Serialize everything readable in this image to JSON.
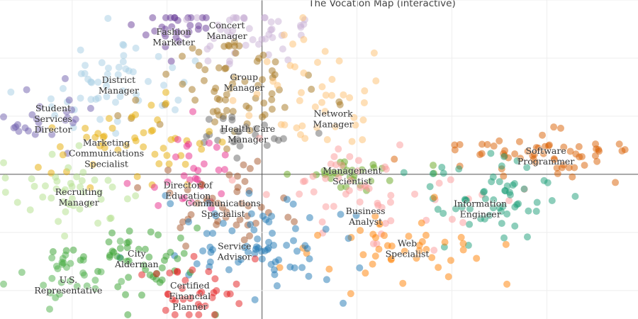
{
  "chart_data": {
    "type": "scatter",
    "title": "The Vocation Map (interactive)",
    "xlabel": "",
    "ylabel": "",
    "xlim": [
      -2.76,
      3.96
    ],
    "ylim": [
      -2.49,
      3.0
    ],
    "grid": true,
    "legend": "none",
    "clusters": [
      {
        "label": [
          "Fashion",
          "Marketer"
        ],
        "label_at": [
          -0.93,
          2.36
        ],
        "center": [
          -0.93,
          2.4
        ],
        "spread": [
          0.3,
          0.28
        ],
        "n": 30,
        "color": "#6a3d9a"
      },
      {
        "label": [
          "Concert",
          "Manager"
        ],
        "label_at": [
          -0.37,
          2.47
        ],
        "center": [
          -0.2,
          2.4
        ],
        "spread": [
          0.3,
          0.3
        ],
        "n": 45,
        "color": "#cab2d6"
      },
      {
        "label": [
          "District",
          "Manager"
        ],
        "label_at": [
          -1.51,
          1.53
        ],
        "center": [
          -1.6,
          1.6
        ],
        "spread": [
          0.45,
          0.45
        ],
        "n": 55,
        "color": "#a6cee3"
      },
      {
        "label": [
          "Student",
          "Services",
          "Director"
        ],
        "label_at": [
          -2.2,
          0.95
        ],
        "center": [
          -2.3,
          1.0
        ],
        "spread": [
          0.25,
          0.3
        ],
        "n": 25,
        "color": "#6f5fad"
      },
      {
        "label": [
          "Group",
          "Manager"
        ],
        "label_at": [
          -0.19,
          1.58
        ],
        "center": [
          -0.35,
          1.45
        ],
        "spread": [
          0.45,
          0.4
        ],
        "n": 70,
        "color": "#a6761d"
      },
      {
        "label": [
          "Network",
          "Manager"
        ],
        "label_at": [
          0.75,
          0.95
        ],
        "center": [
          0.5,
          1.4
        ],
        "spread": [
          0.35,
          0.55
        ],
        "n": 45,
        "color": "#fdbf6f"
      },
      {
        "label": [
          "Health Care",
          "Manager"
        ],
        "label_at": [
          -0.15,
          0.69
        ],
        "center": [
          -0.2,
          0.75
        ],
        "spread": [
          0.3,
          0.2
        ],
        "n": 25,
        "color": "#666666"
      },
      {
        "label": [
          "Marketing",
          "Communications",
          "Specialist"
        ],
        "label_at": [
          -1.64,
          0.36
        ],
        "center": [
          -1.4,
          0.5
        ],
        "spread": [
          0.45,
          0.3
        ],
        "n": 50,
        "color": "#e6ab02"
      },
      {
        "label": [
          "Director of",
          "Education"
        ],
        "label_at": [
          -0.78,
          -0.28
        ],
        "center": [
          -0.7,
          0.05
        ],
        "spread": [
          0.25,
          0.35
        ],
        "n": 30,
        "color": "#e7298a"
      },
      {
        "label": [
          "Communications",
          "Specialist"
        ],
        "label_at": [
          -0.41,
          -0.59
        ],
        "center": [
          -0.45,
          -0.5
        ],
        "spread": [
          0.35,
          0.4
        ],
        "n": 45,
        "color": "#a6562a"
      },
      {
        "label": [
          "Recruiting",
          "Manager"
        ],
        "label_at": [
          -1.93,
          -0.4
        ],
        "center": [
          -2.0,
          -0.4
        ],
        "spread": [
          0.35,
          0.35
        ],
        "n": 45,
        "color": "#b2df8a"
      },
      {
        "label": [
          "Management",
          "Scientist"
        ],
        "label_at": [
          0.95,
          -0.03
        ],
        "center": [
          1.0,
          0.0
        ],
        "spread": [
          0.35,
          0.15
        ],
        "n": 30,
        "color": "#66a61e"
      },
      {
        "label": [
          "Business",
          "Analyst"
        ],
        "label_at": [
          1.09,
          -0.73
        ],
        "center": [
          1.2,
          -0.4
        ],
        "spread": [
          0.55,
          0.5
        ],
        "n": 55,
        "color": "#fb9a99"
      },
      {
        "label": [
          "Software",
          "Programmer"
        ],
        "label_at": [
          2.99,
          0.31
        ],
        "center": [
          2.9,
          0.35
        ],
        "spread": [
          0.5,
          0.2
        ],
        "n": 60,
        "color": "#d95f02"
      },
      {
        "label": [
          "Information",
          "Engineer"
        ],
        "label_at": [
          2.3,
          -0.6
        ],
        "center": [
          2.4,
          -0.45
        ],
        "spread": [
          0.4,
          0.35
        ],
        "n": 60,
        "color": "#1b9e77"
      },
      {
        "label": [
          "Web",
          "Specialist"
        ],
        "label_at": [
          1.53,
          -1.28
        ],
        "center": [
          1.4,
          -1.3
        ],
        "spread": [
          0.5,
          0.35
        ],
        "n": 45,
        "color": "#ff7f00"
      },
      {
        "label": [
          "Service",
          "Advisor"
        ],
        "label_at": [
          -0.29,
          -1.33
        ],
        "center": [
          0.1,
          -1.2
        ],
        "spread": [
          0.5,
          0.45
        ],
        "n": 75,
        "color": "#1f78b4"
      },
      {
        "label": [
          "City",
          "Alderman"
        ],
        "label_at": [
          -1.32,
          -1.46
        ],
        "center": [
          -1.3,
          -1.5
        ],
        "spread": [
          0.4,
          0.4
        ],
        "n": 50,
        "color": "#33a02c"
      },
      {
        "label": [
          "U.S.",
          "Representative"
        ],
        "label_at": [
          -2.04,
          -1.91
        ],
        "center": [
          -2.05,
          -1.65
        ],
        "spread": [
          0.25,
          0.25
        ],
        "n": 30,
        "color": "#4daf4a"
      },
      {
        "label": [
          "Certified",
          "Financial",
          "Planner"
        ],
        "label_at": [
          -0.76,
          -2.1
        ],
        "center": [
          -0.75,
          -2.0
        ],
        "spread": [
          0.25,
          0.3
        ],
        "n": 35,
        "color": "#e31a1c"
      }
    ]
  }
}
